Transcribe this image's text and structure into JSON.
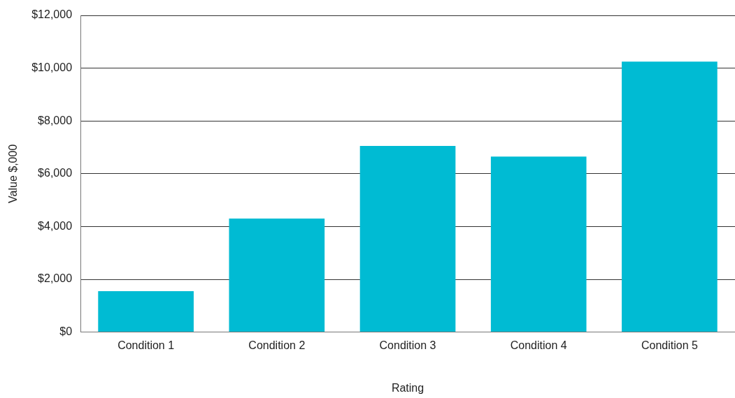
{
  "chart_data": {
    "type": "bar",
    "xlabel": "Rating",
    "ylabel": "Value $,000",
    "categories": [
      "Condition 1",
      "Condition 2",
      "Condition 3",
      "Condition 4",
      "Condition 5"
    ],
    "values": [
      1550,
      4300,
      7050,
      6650,
      10250
    ],
    "color": "#00bbd3",
    "ylim": [
      0,
      12000
    ],
    "yticks": [
      {
        "value": 0,
        "label": "$0"
      },
      {
        "value": 2000,
        "label": "$2,000"
      },
      {
        "value": 4000,
        "label": "$4,000"
      },
      {
        "value": 6000,
        "label": "$6,000"
      },
      {
        "value": 8000,
        "label": "$8,000"
      },
      {
        "value": 10000,
        "label": "$10,000"
      },
      {
        "value": 12000,
        "label": "$12,000"
      }
    ],
    "grid": "y",
    "legend": false
  }
}
